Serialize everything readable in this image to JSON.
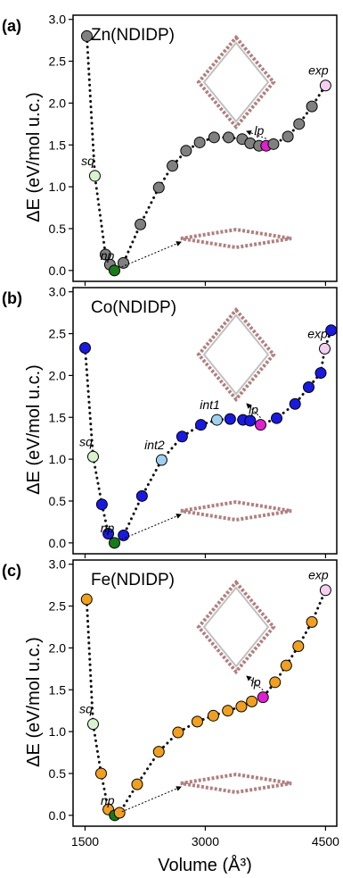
{
  "chart_data": [
    {
      "type": "scatter-line",
      "panel_label": "(a)",
      "title": "Zn(NDIDP)",
      "ylabel": "ΔE (eV/mol u.c.)",
      "color": "#808080",
      "x": [
        1522,
        1622,
        1755,
        1810,
        1867,
        1978,
        2190,
        2420,
        2590,
        2760,
        2930,
        3110,
        3290,
        3460,
        3560,
        3670,
        3760,
        3850,
        4030,
        4170,
        4330,
        4500
      ],
      "values": [
        2.8,
        1.13,
        0.19,
        0.07,
        0.0,
        0.09,
        0.55,
        0.99,
        1.25,
        1.43,
        1.53,
        1.59,
        1.59,
        1.57,
        1.52,
        1.49,
        1.49,
        1.51,
        1.6,
        1.75,
        1.96,
        2.21
      ],
      "point_colors": [
        null,
        "#d9f2d0",
        null,
        null,
        "#1a7a1a",
        null,
        null,
        null,
        null,
        null,
        null,
        null,
        null,
        null,
        null,
        null,
        "#e020d0",
        null,
        null,
        null,
        null,
        "#f4d0f0"
      ],
      "point_labels": [
        null,
        "sq",
        null,
        null,
        "np",
        null,
        null,
        null,
        null,
        null,
        null,
        null,
        null,
        null,
        null,
        null,
        "lp",
        null,
        null,
        null,
        null,
        "exp"
      ],
      "xlim": [
        1350,
        4640
      ],
      "xticks": [
        1500,
        3000,
        4500
      ],
      "ylim": [
        -0.13,
        3.05
      ],
      "yticks": [
        {
          "value": 0,
          "label": "0.0"
        },
        0.5,
        {
          "value": 1,
          "label": "1.0"
        },
        1.5,
        {
          "value": 2,
          "label": "2.0"
        },
        2.5,
        {
          "value": 3,
          "label": "3.0"
        }
      ]
    },
    {
      "type": "scatter-line",
      "panel_label": "(b)",
      "title": "Co(NDIDP)",
      "ylabel": "ΔE (eV/mol u.c.)",
      "color": "#1a1adf",
      "x": [
        1500,
        1600,
        1710,
        1790,
        1867,
        1980,
        2210,
        2455,
        2710,
        2945,
        3145,
        3310,
        3470,
        3560,
        3690,
        3890,
        4120,
        4290,
        4440,
        4490,
        4570
      ],
      "values": [
        2.33,
        1.03,
        0.46,
        0.11,
        0.0,
        0.09,
        0.56,
        0.99,
        1.27,
        1.41,
        1.47,
        1.48,
        1.47,
        1.46,
        1.41,
        1.49,
        1.66,
        1.86,
        2.03,
        2.32,
        2.54
      ],
      "point_colors": [
        null,
        "#d9f2d0",
        null,
        null,
        "#1a7a1a",
        null,
        null,
        "#a0d0f0",
        null,
        null,
        "#a0d0f0",
        null,
        null,
        null,
        "#e020d0",
        null,
        null,
        null,
        null,
        "#f4d0f0",
        null
      ],
      "point_labels": [
        null,
        "sq",
        null,
        null,
        "np",
        null,
        null,
        "int2",
        null,
        null,
        "int1",
        null,
        null,
        null,
        "lp",
        null,
        null,
        null,
        null,
        "exp",
        null
      ],
      "xlim": [
        1350,
        4640
      ],
      "xticks": [
        1500,
        3000,
        4500
      ],
      "ylim": [
        -0.13,
        3.05
      ],
      "yticks": [
        {
          "value": 0,
          "label": "0.0"
        },
        0.5,
        {
          "value": 1,
          "label": "1.0"
        },
        1.5,
        {
          "value": 2,
          "label": "2.0"
        },
        2.5,
        {
          "value": 3,
          "label": "3.0"
        }
      ]
    },
    {
      "type": "scatter-line",
      "panel_label": "(c)",
      "title": "Fe(NDIDP)",
      "ylabel": "ΔE (eV/mol u.c.)",
      "xlabel": "Volume (Å³)",
      "color": "#f0a020",
      "x": [
        1520,
        1600,
        1700,
        1790,
        1870,
        1930,
        2150,
        2420,
        2660,
        2900,
        3100,
        3280,
        3450,
        3580,
        3720,
        3870,
        4010,
        4160,
        4330,
        4500
      ],
      "values": [
        2.58,
        1.09,
        0.5,
        0.07,
        0.0,
        0.03,
        0.37,
        0.76,
        0.99,
        1.12,
        1.19,
        1.25,
        1.3,
        1.36,
        1.41,
        1.59,
        1.79,
        2.02,
        2.31,
        2.69
      ],
      "point_colors": [
        null,
        "#d9f2d0",
        null,
        null,
        "#1a7a1a",
        null,
        null,
        null,
        null,
        null,
        null,
        null,
        null,
        null,
        "#e020d0",
        null,
        null,
        null,
        null,
        "#f4d0f0"
      ],
      "point_labels": [
        null,
        "sq",
        null,
        null,
        "np",
        null,
        null,
        null,
        null,
        null,
        null,
        null,
        null,
        null,
        "lp",
        null,
        null,
        null,
        null,
        "exp"
      ],
      "xlim": [
        1350,
        4640
      ],
      "xticks": [
        1500,
        3000,
        4500
      ],
      "xticklabels": true,
      "ylim": [
        -0.13,
        3.05
      ],
      "yticks": [
        {
          "value": 0,
          "label": "0.0"
        },
        0.5,
        {
          "value": 1,
          "label": "1.0"
        },
        1.5,
        {
          "value": 2,
          "label": "2.0"
        },
        2.5,
        {
          "value": 3,
          "label": "3.0"
        }
      ]
    }
  ]
}
